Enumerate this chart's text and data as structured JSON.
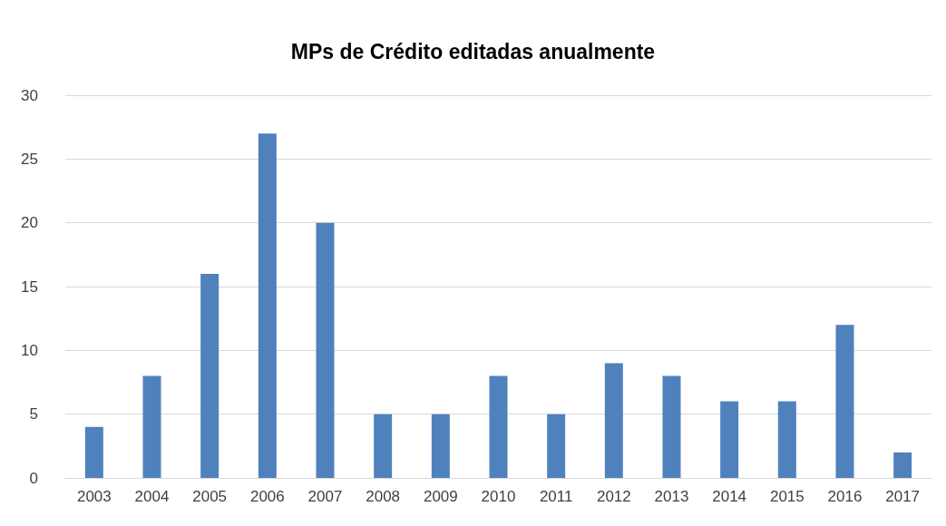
{
  "chart_data": {
    "type": "bar",
    "title": "MPs de Crédito editadas anualmente",
    "categories": [
      "2003",
      "2004",
      "2005",
      "2006",
      "2007",
      "2008",
      "2009",
      "2010",
      "2011",
      "2012",
      "2013",
      "2014",
      "2015",
      "2016",
      "2017"
    ],
    "values": [
      4,
      8,
      16,
      27,
      20,
      5,
      5,
      8,
      5,
      9,
      8,
      6,
      6,
      12,
      2
    ],
    "color": "#4f81bd",
    "ylim": [
      0,
      30
    ],
    "yticks": [
      0,
      5,
      10,
      15,
      20,
      25,
      30
    ],
    "grid": "y"
  }
}
